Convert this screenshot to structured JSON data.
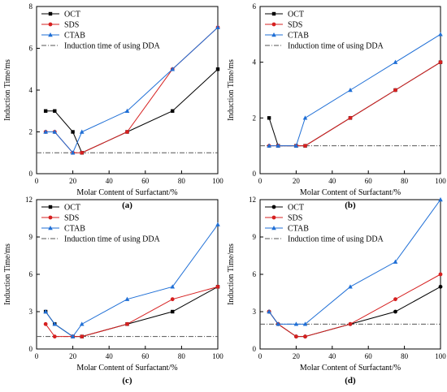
{
  "colors": {
    "OCT": "#000000",
    "SDS": "#d62020",
    "CTAB": "#1f6fd6",
    "dda_line": "#555555"
  },
  "chart_data": [
    {
      "type": "line",
      "panel_label": "(a)",
      "xlabel": "Molar Content of Surfactant/%",
      "ylabel": "Induction Time/ms",
      "xlim": [
        0,
        100
      ],
      "ylim": [
        0,
        8
      ],
      "xticks": [
        "0",
        "20",
        "40",
        "60",
        "80",
        "100"
      ],
      "yticks": [
        "0",
        "2",
        "4",
        "6",
        "8"
      ],
      "legend_position": "top-left",
      "x": [
        5,
        10,
        20,
        25,
        50,
        75,
        100
      ],
      "series": [
        {
          "name": "OCT",
          "marker": "square",
          "values": [
            3,
            3,
            2,
            1,
            2,
            3,
            5
          ]
        },
        {
          "name": "SDS",
          "marker": "circle",
          "values": [
            2,
            2,
            1,
            1,
            2,
            5,
            7
          ]
        },
        {
          "name": "CTAB",
          "marker": "triangle",
          "values": [
            2,
            2,
            1,
            2,
            3,
            5,
            7
          ]
        }
      ],
      "reference_line": {
        "name": "Induction time of using DDA",
        "value": 1
      }
    },
    {
      "type": "line",
      "panel_label": "(b)",
      "xlabel": "Molar Content of Surfactant/%",
      "ylabel": "Induction Time/ms",
      "xlim": [
        0,
        100
      ],
      "ylim": [
        0,
        6
      ],
      "xticks": [
        "0",
        "20",
        "40",
        "60",
        "80",
        "100"
      ],
      "yticks": [
        "0",
        "2",
        "4",
        "6"
      ],
      "legend_position": "top-left",
      "x": [
        5,
        10,
        20,
        25,
        50,
        75,
        100
      ],
      "series": [
        {
          "name": "OCT",
          "marker": "square",
          "values": [
            2,
            1,
            1,
            1,
            2,
            3,
            4
          ]
        },
        {
          "name": "SDS",
          "marker": "circle",
          "values": [
            1,
            1,
            1,
            1,
            2,
            3,
            4
          ]
        },
        {
          "name": "CTAB",
          "marker": "triangle",
          "values": [
            1,
            1,
            1,
            2,
            3,
            4,
            5
          ]
        }
      ],
      "reference_line": {
        "name": "Induction time of using DDA",
        "value": 1
      }
    },
    {
      "type": "line",
      "panel_label": "(c)",
      "xlabel": "Molar Content of Surfactant/%",
      "ylabel": "Induction Time/ms",
      "xlim": [
        0,
        100
      ],
      "ylim": [
        0,
        12
      ],
      "xticks": [
        "0",
        "20",
        "40",
        "60",
        "80",
        "100"
      ],
      "yticks": [
        "0",
        "3",
        "6",
        "9",
        "12"
      ],
      "legend_position": "top-left",
      "x": [
        5,
        10,
        20,
        25,
        50,
        75,
        100
      ],
      "series": [
        {
          "name": "OCT",
          "marker": "square",
          "values": [
            3,
            2,
            1,
            1,
            2,
            3,
            5
          ]
        },
        {
          "name": "SDS",
          "marker": "circle",
          "values": [
            2,
            1,
            1,
            1,
            2,
            4,
            5
          ]
        },
        {
          "name": "CTAB",
          "marker": "triangle",
          "values": [
            3,
            2,
            1,
            2,
            4,
            5,
            10
          ]
        }
      ],
      "reference_line": {
        "name": "Induction time of using DDA",
        "value": 1
      }
    },
    {
      "type": "line",
      "panel_label": "(d)",
      "xlabel": "Molar Content of Surfactant/%",
      "ylabel": "Induction Time/ms",
      "xlim": [
        0,
        100
      ],
      "ylim": [
        0,
        12
      ],
      "xticks": [
        "0",
        "20",
        "40",
        "60",
        "80",
        "100"
      ],
      "yticks": [
        "0",
        "3",
        "6",
        "9",
        "12"
      ],
      "legend_position": "top-left",
      "x": [
        5,
        10,
        20,
        25,
        50,
        75,
        100
      ],
      "series": [
        {
          "name": "OCT",
          "marker": "circle",
          "values": [
            3,
            2,
            1,
            1,
            2,
            3,
            5
          ]
        },
        {
          "name": "SDS",
          "marker": "circle",
          "values": [
            3,
            2,
            1,
            1,
            2,
            4,
            6
          ]
        },
        {
          "name": "CTAB",
          "marker": "triangle",
          "values": [
            3,
            2,
            2,
            2,
            5,
            7,
            12
          ]
        }
      ],
      "reference_line": {
        "name": "Induction time of using DDA",
        "value": 2
      }
    }
  ]
}
